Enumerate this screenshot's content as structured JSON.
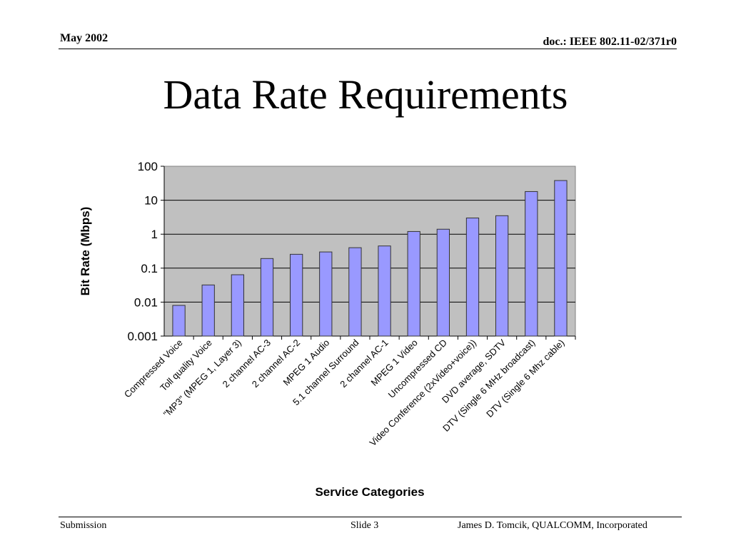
{
  "header": {
    "date": "May 2002",
    "doc": "doc.: IEEE 802.11-02/371r0"
  },
  "slide": {
    "title": "Data Rate Requirements"
  },
  "footer": {
    "left": "Submission",
    "center": "Slide 3",
    "right": "James D. Tomcik, QUALCOMM, Incorporated"
  },
  "colors": {
    "bar_fill": "#9999ff",
    "plot_bg": "#c0c0c0",
    "bar_stroke": "#333333"
  },
  "chart_data": {
    "type": "bar",
    "yscale": "log",
    "ylim": [
      0.001,
      100
    ],
    "yticks": [
      "0.001",
      "0.01",
      "0.1",
      "1",
      "10",
      "100"
    ],
    "ylabel": "Bit Rate (Mbps)",
    "xlabel": "Service Categories",
    "grid": true,
    "legend": "none",
    "categories": [
      "Compressed Voice",
      "Toll quality Voice",
      "\"MP3\" (MPEG 1, Layer 3)",
      "2 channel AC-3",
      "2 channel AC-2",
      "MPEG 1 Audio",
      "5.1 channel Surround",
      "2 channel AC-1",
      "MPEG 1 Video",
      "Uncompressed CD",
      "Video Conference (2xVideo+voice))",
      "DVD average, SDTV",
      "DTV (Single 6 MHz broadcast)",
      "DTV (Single 6 Mhz cable)"
    ],
    "values": [
      0.008,
      0.032,
      0.064,
      0.192,
      0.256,
      0.3,
      0.4,
      0.45,
      1.2,
      1.4,
      3,
      3.5,
      18,
      38
    ]
  }
}
